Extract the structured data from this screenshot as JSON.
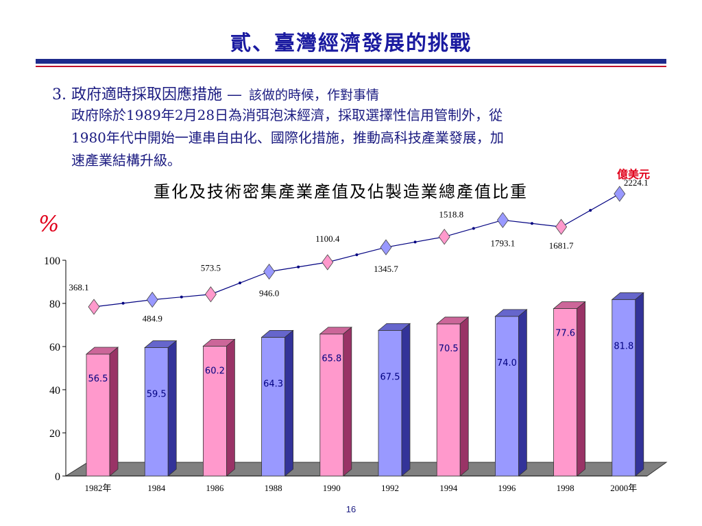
{
  "slide": {
    "title": "貳、臺灣經濟發展的挑戰",
    "heading_main": "3. 政府適時採取因應措施 —",
    "heading_sub": "該做的時候，作對事情",
    "para_lines": [
      "政府除於1989年2月28日為消弭泡沫經濟，採取選擇性信用管制外，從",
      "1980年代中開始一連串自由化、國際化措施，推動高科技產業發展，加",
      "速產業結構升級。"
    ],
    "page_number": "16"
  },
  "chart_data": {
    "type": "bar",
    "title": "重化及技術密集產業產值及佔製造業總產值比重",
    "ylabel": "%",
    "ylim": [
      0,
      100
    ],
    "yticks": [
      0,
      20,
      40,
      60,
      80,
      100
    ],
    "categories": [
      "1982年",
      "1984",
      "1986",
      "1988",
      "1990",
      "1992",
      "1994",
      "1996",
      "1998",
      "2000年"
    ],
    "series": [
      {
        "values": [
          56.5,
          59.5,
          60.2,
          64.3,
          65.8,
          67.5,
          70.5,
          74.0,
          77.6,
          81.8
        ],
        "value_labels": [
          "56.5",
          "59.5",
          "60.2",
          "64.3",
          "65.8",
          "67.5",
          "70.5",
          "74.0",
          "77.6",
          "81.8"
        ]
      },
      {
        "name": "億美元",
        "type": "line",
        "values": [
          368.1,
          484.9,
          573.5,
          946.0,
          1100.4,
          1345.7,
          1518.8,
          1793.1,
          1681.7,
          2224.1
        ],
        "value_labels": [
          "368.1",
          "484.9",
          "573.5",
          "946.0",
          "1100.4",
          "1345.7",
          "1518.8",
          "1793.1",
          "1681.7",
          "2224.1"
        ]
      }
    ],
    "colors": {
      "pink": "#ff99cc",
      "pink_top": "#cc6699",
      "pink_side": "#993366",
      "blue": "#9999ff",
      "blue_top": "#6666cc",
      "blue_side": "#333399",
      "floor": "#808080",
      "line": "#000080",
      "label_blue": "#000080"
    }
  }
}
